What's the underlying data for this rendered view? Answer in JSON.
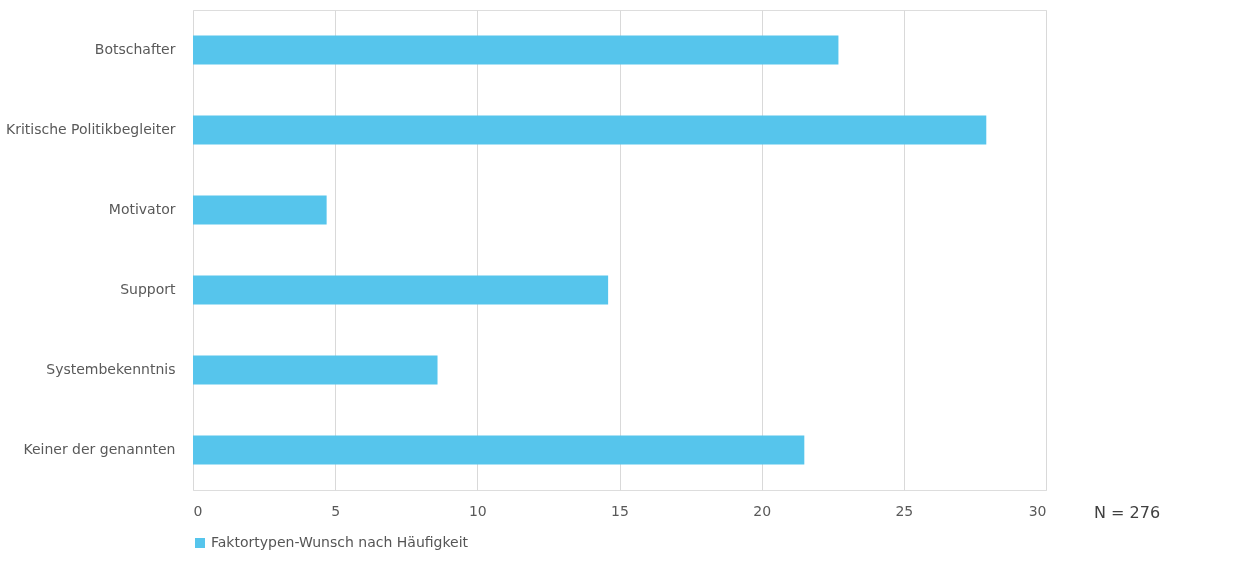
{
  "chart_data": {
    "type": "bar",
    "orientation": "horizontal",
    "categories": [
      "Botschafter",
      "Kritische Politikbegleiter",
      "Motivator",
      "Support",
      "Systembekenntnis",
      "Keiner der genannten"
    ],
    "series": [
      {
        "name": "Faktortypen-Wunsch nach Häufigkeit",
        "color": "#56c5ec",
        "values": [
          22.7,
          27.9,
          4.7,
          14.6,
          8.6,
          21.5
        ]
      }
    ],
    "xlim": [
      0,
      30
    ],
    "xticks": [
      0,
      5,
      10,
      15,
      20,
      25,
      30
    ],
    "grid": "x",
    "legend": "bottom",
    "annotations": [
      "N = 276"
    ]
  }
}
